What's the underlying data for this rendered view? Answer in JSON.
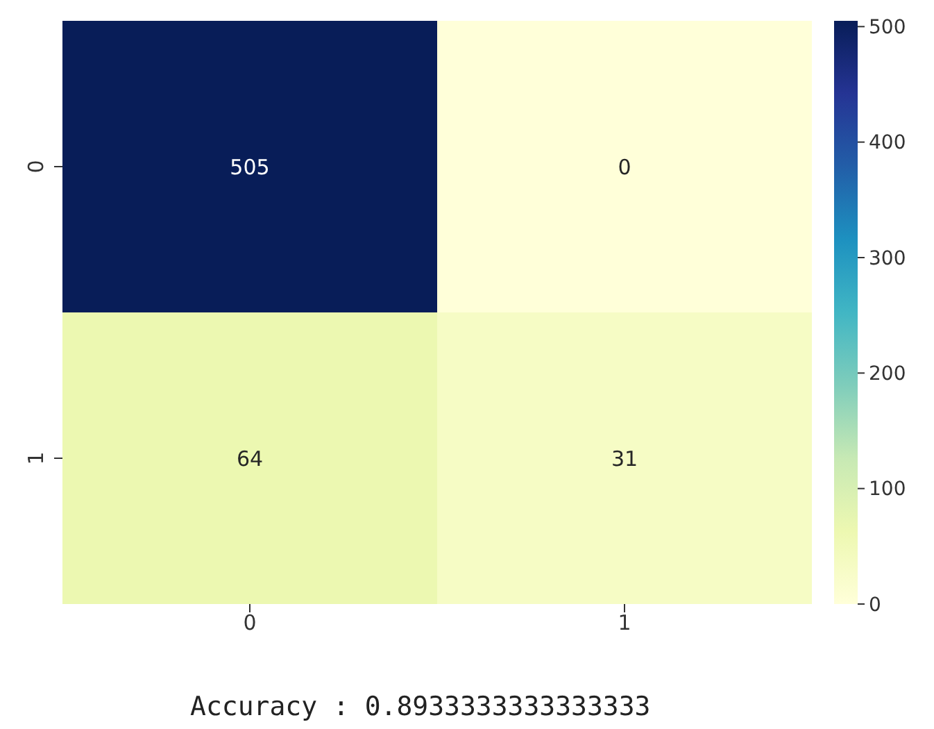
{
  "chart_data": {
    "type": "heatmap",
    "categories": [
      "0",
      "1"
    ],
    "y_categories": [
      "0",
      "1"
    ],
    "cells": [
      [
        505,
        0
      ],
      [
        64,
        31
      ]
    ],
    "data_labels": true,
    "clim": [
      0,
      505
    ],
    "cticks": [
      0,
      100,
      200,
      300,
      400,
      500
    ],
    "annotations": [
      "Accuracy : 0.8933333333333333"
    ]
  }
}
